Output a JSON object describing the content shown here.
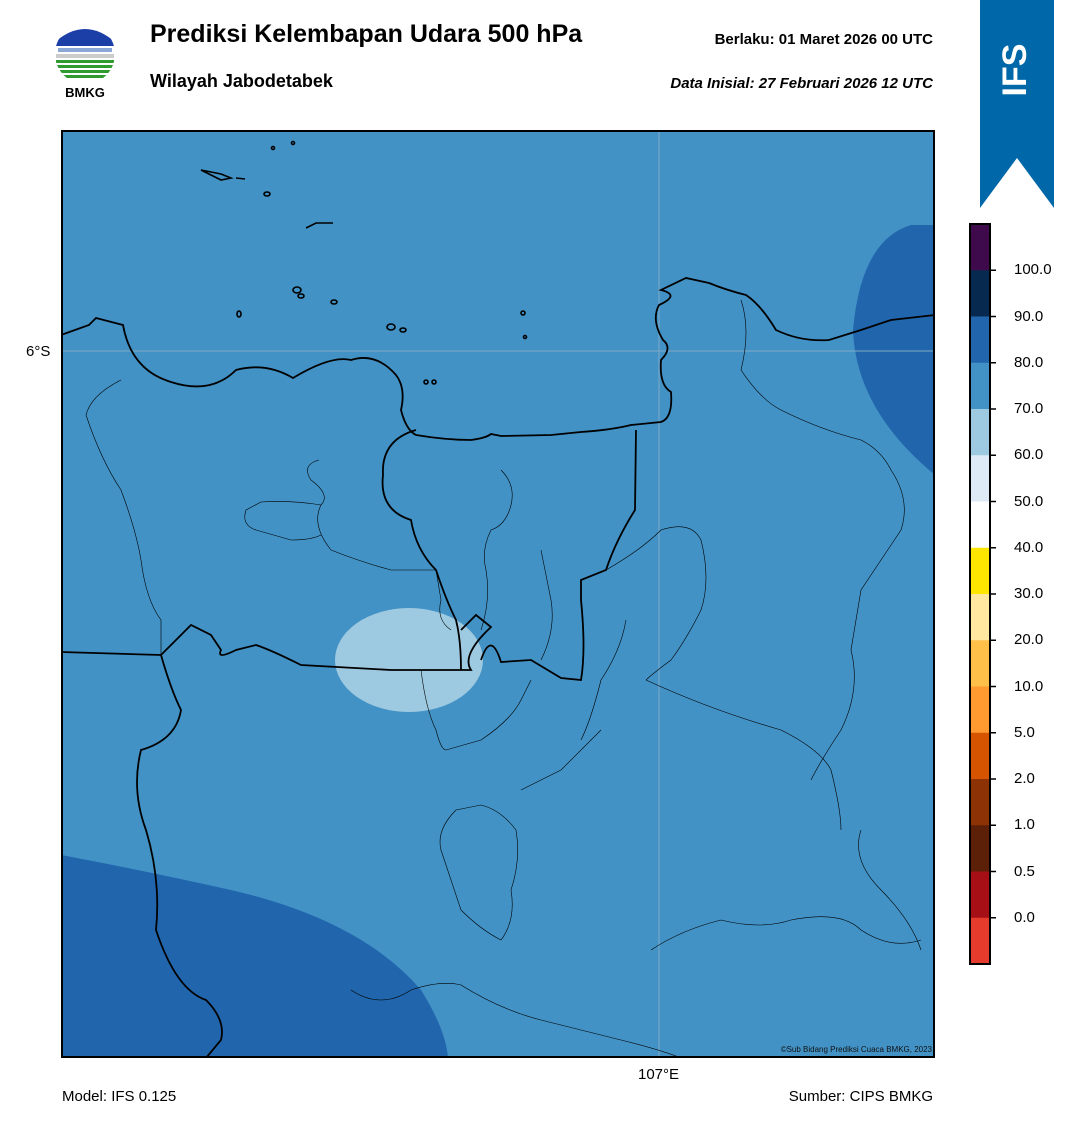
{
  "header": {
    "title": "Prediksi Kelembapan Udara 500 hPa",
    "subtitle": "Wilayah Jabodetabek",
    "valid_label": "Berlaku:  01 Maret 2026 00 UTC",
    "init_label": "Data Inisial:  27 Februari 2026 12 UTC"
  },
  "logo": {
    "text": "BMKG",
    "icon": "bmkg-logo"
  },
  "badge": {
    "text": "IFS",
    "color": "#0068a8"
  },
  "map": {
    "lat_label": "6°S",
    "lon_label": "107°E",
    "copyright": "©Sub Bidang Prediksi Cuaca BMKG, 2023",
    "background_color": "#4292c6"
  },
  "footer": {
    "model": "Model: IFS 0.125",
    "source": "Sumber: CIPS BMKG"
  },
  "legend": {
    "labels": [
      "100.0",
      "90.0",
      "80.0",
      "70.0",
      "60.0",
      "50.0",
      "40.0",
      "30.0",
      "20.0",
      "10.0",
      "5.0",
      "2.0",
      "1.0",
      "0.5",
      "0.0"
    ],
    "colors": [
      "#3f0a4c",
      "#08294f",
      "#2166ac",
      "#4292c6",
      "#9ecae1",
      "#deebf7",
      "#ffffff",
      "#ffe600",
      "#ffe7a0",
      "#ffc04a",
      "#ff9a30",
      "#d65300",
      "#8c3204",
      "#5c2008",
      "#a50f15",
      "#e53b2d"
    ]
  }
}
